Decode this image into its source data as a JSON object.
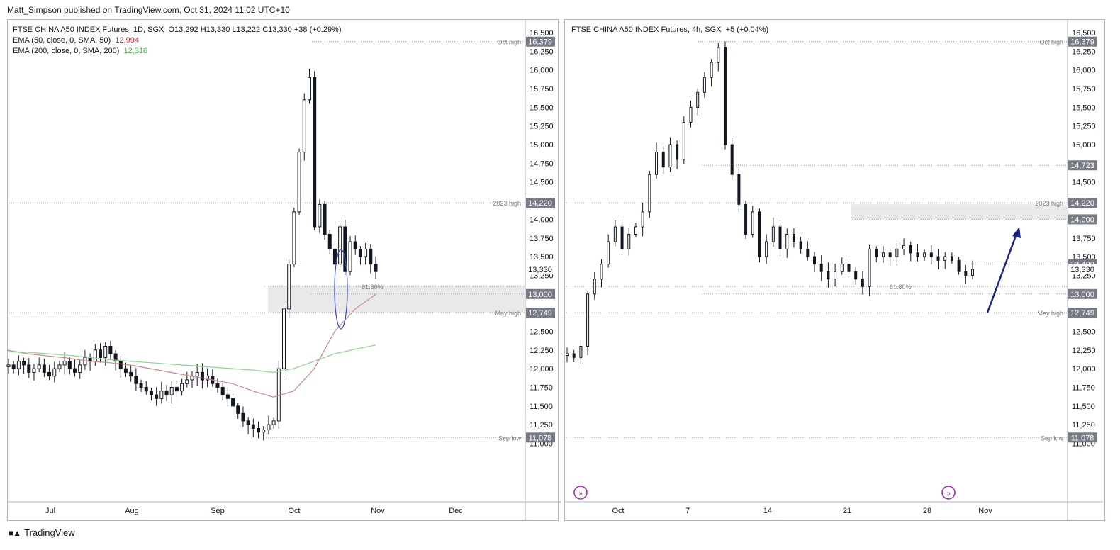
{
  "header": {
    "publisher": "Matt_Simpson published on TradingView.com, Oct 31, 2024 11:02 UTC+10"
  },
  "footer": {
    "brand": "TradingView",
    "logo": "tradingview-logo-icon"
  },
  "colors": {
    "up": "#ffffff",
    "down": "#131722",
    "ema50": "#c78a8a",
    "ema200": "#8fd18f",
    "arrow": "#1a237e",
    "oval": "#3f51b5",
    "zone": "#e9e9ea",
    "axis_label_bg": "#787b86"
  },
  "left": {
    "legend": {
      "title": "FTSE CHINA A50 INDEX Futures, 1D, SGX",
      "ohlc": "O13,292  H13,330  L13,222  C13,330  +38 (+0.29%)",
      "ema50_label": "EMA (50, close, 0, SMA, 50)",
      "ema50_value": "12,994",
      "ema200_label": "EMA (200, close, 0, SMA, 200)",
      "ema200_value": "12,316"
    },
    "price_axis": [
      "16,500",
      "16,250",
      "16,000",
      "15,750",
      "15,500",
      "15,250",
      "15,000",
      "14,750",
      "14,500",
      "14,250",
      "14,000",
      "13,750",
      "13,500",
      "13,250",
      "13,000",
      "12,750",
      "12,500",
      "12,250",
      "12,000",
      "11,750",
      "11,500",
      "11,250",
      "11,000"
    ],
    "time_axis": [
      "Jul",
      "Aug",
      "Sep",
      "Oct",
      "Nov",
      "Dec"
    ],
    "levels": [
      {
        "label": "Oct high",
        "value": "16,379"
      },
      {
        "label": "2023 high",
        "value": "14,220"
      },
      {
        "label": "May high",
        "value": "12,749"
      },
      {
        "label": "Sep low",
        "value": "11,078"
      }
    ],
    "extra_tags": [
      "13,330",
      "13,000"
    ],
    "fib_label": "61.80%"
  },
  "right": {
    "legend": {
      "title": "FTSE CHINA A50 INDEX Futures, 4h, SGX",
      "change": "+5 (+0.04%)"
    },
    "price_axis": [
      "16,500",
      "16,250",
      "16,000",
      "15,750",
      "15,500",
      "15,250",
      "15,000",
      "14,750",
      "14,500",
      "14,250",
      "14,000",
      "13,750",
      "13,500",
      "13,250",
      "13,000",
      "12,750",
      "12,500",
      "12,250",
      "12,000",
      "11,750",
      "11,500",
      "11,250",
      "11,000"
    ],
    "time_axis": [
      "Oct",
      "7",
      "14",
      "21",
      "28",
      "Nov"
    ],
    "levels": [
      {
        "label": "Oct high",
        "value": "16,379"
      },
      {
        "label": "",
        "value": "14,723"
      },
      {
        "label": "2023 high",
        "value": "14,220"
      },
      {
        "label": "",
        "value": "14,000"
      },
      {
        "label": "",
        "value": "13,400"
      },
      {
        "label": "May high",
        "value": "12,749"
      },
      {
        "label": "Sep low",
        "value": "11,078"
      }
    ],
    "extra_tags": [
      "13,330",
      "13,000"
    ],
    "fib_label": "61.80%"
  },
  "chart_data": [
    {
      "type": "candlestick",
      "title": "FTSE CHINA A50 INDEX Futures, 1D, SGX",
      "timeframe": "1D",
      "ylim": [
        10950,
        16600
      ],
      "x_ticks": [
        "Jul",
        "Aug",
        "Sep",
        "Oct",
        "Nov",
        "Dec"
      ],
      "series": [
        {
          "name": "EMA (50, close, 0, SMA, 50)",
          "last": 12994
        },
        {
          "name": "EMA (200, close, 0, SMA, 200)",
          "last": 12316
        }
      ],
      "levels": {
        "Oct high": 16379,
        "2023 high": 14220,
        "May high": 12749,
        "Sep low": 11078,
        "61.80%": 13100
      },
      "last_close": 13330,
      "ohlc_last": {
        "open": 13292,
        "high": 13330,
        "low": 13222,
        "close": 13330,
        "change": 38,
        "change_pct": 0.29
      },
      "closes_approx": [
        12050,
        12000,
        12100,
        12050,
        11950,
        12000,
        12050,
        11950,
        11900,
        12000,
        12050,
        12100,
        12000,
        11950,
        12050,
        12150,
        12100,
        12250,
        12150,
        12300,
        12200,
        12100,
        12000,
        11950,
        11900,
        11800,
        11750,
        11700,
        11650,
        11600,
        11700,
        11650,
        11750,
        11700,
        11800,
        11850,
        11900,
        11950,
        11850,
        11900,
        11800,
        11750,
        11650,
        11600,
        11500,
        11400,
        11300,
        11250,
        11200,
        11150,
        11180,
        11250,
        11300,
        12000,
        12800,
        13400,
        14100,
        14900,
        15600,
        15900,
        13900,
        14200,
        13800,
        13600,
        13400,
        13900,
        13300,
        13700,
        13600,
        13500,
        13600,
        13400,
        13300
      ]
    },
    {
      "type": "candlestick",
      "title": "FTSE CHINA A50 INDEX Futures, 4h, SGX",
      "timeframe": "4h",
      "ylim": [
        10950,
        16600
      ],
      "x_ticks": [
        "Oct",
        "7",
        "14",
        "21",
        "28",
        "Nov"
      ],
      "levels": {
        "Oct high": 16379,
        "14723": 14723,
        "2023 high": 14220,
        "14000": 14000,
        "13400": 13400,
        "May high": 12749,
        "Sep low": 11078,
        "61.80%": 13100
      },
      "last_close": 13330,
      "change": "+5 (+0.04%)",
      "closes_approx": [
        12200,
        12150,
        12300,
        13000,
        13200,
        13400,
        13700,
        13900,
        13600,
        13800,
        13900,
        14100,
        14600,
        14900,
        14700,
        15000,
        14800,
        15300,
        15500,
        15700,
        15900,
        16100,
        16300,
        15000,
        14600,
        14200,
        13800,
        14100,
        13500,
        13700,
        13900,
        13600,
        13800,
        13700,
        13600,
        13500,
        13400,
        13300,
        13200,
        13300,
        13400,
        13300,
        13200,
        13100,
        13600,
        13500,
        13550,
        13500,
        13600,
        13650,
        13550,
        13500,
        13550,
        13500,
        13450,
        13500,
        13450,
        13300,
        13250,
        13330
      ]
    }
  ]
}
